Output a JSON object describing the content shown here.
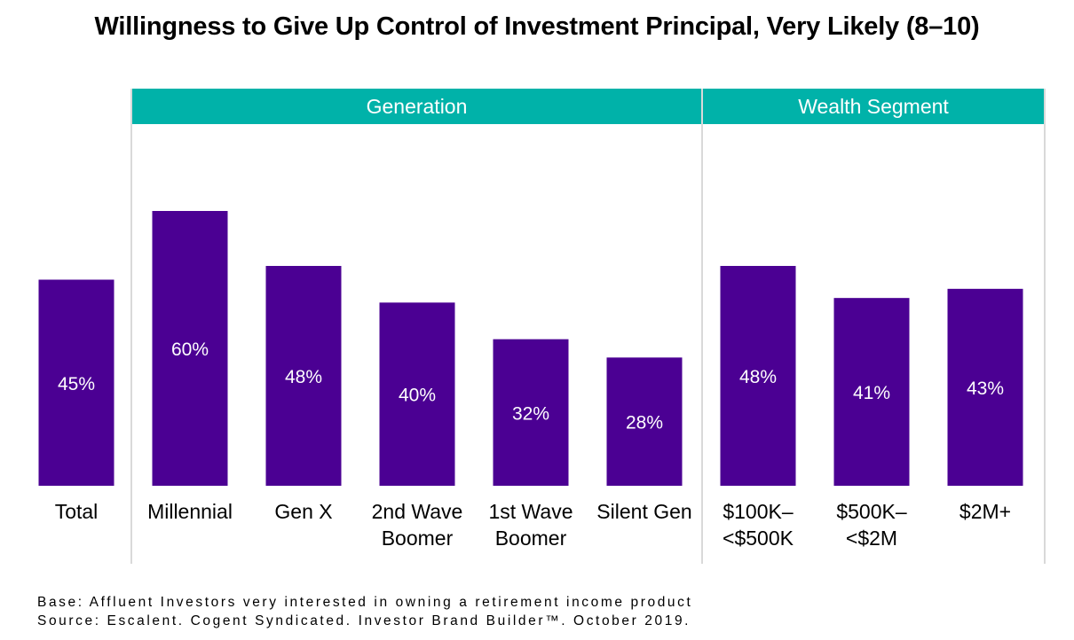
{
  "title": "Willingness to Give Up Control of Investment Principal, Very Likely (8–10)",
  "colors": {
    "bar": "#4B0093",
    "header": "#00B2A9",
    "divider": "#D9D9D9",
    "bar_label": "#FFFFFF"
  },
  "chart_data": {
    "type": "bar",
    "title": "Willingness to Give Up Control of Investment Principal, Very Likely (8–10)",
    "groups": [
      {
        "name": "",
        "categories": [
          "Total"
        ]
      },
      {
        "name": "Generation",
        "categories": [
          "Millennial",
          "Gen X",
          "2nd Wave Boomer",
          "1st Wave Boomer",
          "Silent Gen"
        ]
      },
      {
        "name": "Wealth Segment",
        "categories": [
          "$100K– <$500K",
          "$500K– <$2M",
          "$2M+"
        ]
      }
    ],
    "bars": [
      {
        "category": [
          "Total"
        ],
        "value": 45,
        "label": "45%"
      },
      {
        "category": [
          "Millennial"
        ],
        "value": 60,
        "label": "60%"
      },
      {
        "category": [
          "Gen X"
        ],
        "value": 48,
        "label": "48%"
      },
      {
        "category": [
          "2nd Wave",
          "Boomer"
        ],
        "value": 40,
        "label": "40%"
      },
      {
        "category": [
          "1st Wave",
          "Boomer"
        ],
        "value": 32,
        "label": "32%"
      },
      {
        "category": [
          "Silent Gen"
        ],
        "value": 28,
        "label": "28%"
      },
      {
        "category": [
          "$100K–",
          "<$500K"
        ],
        "value": 48,
        "label": "48%"
      },
      {
        "category": [
          "$500K–",
          "<$2M"
        ],
        "value": 41,
        "label": "41%"
      },
      {
        "category": [
          "$2M+"
        ],
        "value": 43,
        "label": "43%"
      }
    ],
    "value_unit": "%",
    "ylim": [
      0,
      60
    ],
    "grid": false,
    "legend": "none"
  },
  "footnote": {
    "base": "Base: Affluent Investors very interested in owning a retirement income product",
    "source": "Source: Escalent. Cogent Syndicated. Investor Brand Builder™. October 2019."
  }
}
